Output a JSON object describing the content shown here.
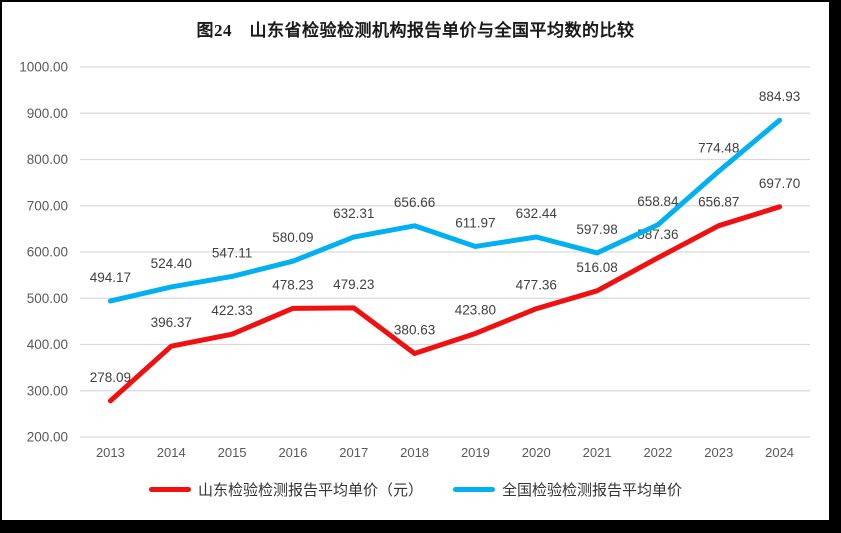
{
  "chart_data": {
    "type": "line",
    "title": "图24　山东省检验检测机构报告单价与全国平均数的比较",
    "categories": [
      "2013",
      "2014",
      "2015",
      "2016",
      "2017",
      "2018",
      "2019",
      "2020",
      "2021",
      "2022",
      "2023",
      "2024"
    ],
    "series": [
      {
        "name": "山东检验检测报告平均单价（元）",
        "color": "#F01010",
        "values": [
          278.09,
          396.37,
          422.33,
          478.23,
          479.23,
          380.63,
          423.8,
          477.36,
          516.08,
          587.36,
          656.87,
          697.7
        ]
      },
      {
        "name": "全国检验检测报告平均单价",
        "color": "#00B0F0",
        "values": [
          494.17,
          524.4,
          547.11,
          580.09,
          632.31,
          656.66,
          611.97,
          632.44,
          597.98,
          658.84,
          774.48,
          884.93
        ]
      }
    ],
    "ylim": [
      200,
      1000
    ],
    "ytick_step": 100,
    "ytick_labels": [
      "200.00",
      "300.00",
      "400.00",
      "500.00",
      "600.00",
      "700.00",
      "800.00",
      "900.00",
      "1000.00"
    ],
    "value_label_decimals": 2,
    "grid": "horizontal",
    "legend_position": "bottom",
    "colors": {
      "grid": "#D9D9D9",
      "axis_text": "#595959",
      "value_label_text": "#404040",
      "title_text": "#1a1a1a",
      "frame": "#000000",
      "background": "#ffffff"
    }
  }
}
